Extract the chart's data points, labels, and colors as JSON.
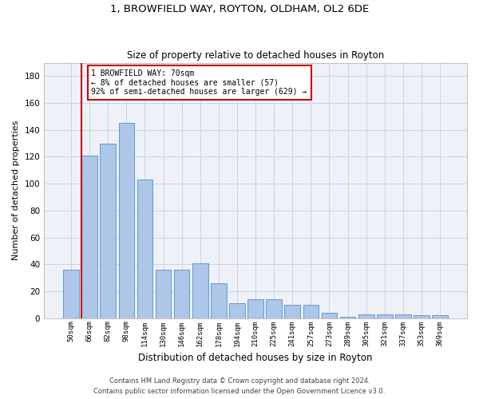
{
  "title1": "1, BROWFIELD WAY, ROYTON, OLDHAM, OL2 6DE",
  "title2": "Size of property relative to detached houses in Royton",
  "xlabel": "Distribution of detached houses by size in Royton",
  "ylabel": "Number of detached properties",
  "categories": [
    "50sqm",
    "66sqm",
    "82sqm",
    "98sqm",
    "114sqm",
    "130sqm",
    "146sqm",
    "162sqm",
    "178sqm",
    "194sqm",
    "210sqm",
    "225sqm",
    "241sqm",
    "257sqm",
    "273sqm",
    "289sqm",
    "305sqm",
    "321sqm",
    "337sqm",
    "353sqm",
    "369sqm"
  ],
  "values": [
    36,
    121,
    130,
    145,
    103,
    36,
    36,
    41,
    26,
    11,
    14,
    14,
    10,
    10,
    4,
    1,
    3,
    3,
    3,
    2,
    2
  ],
  "bar_color": "#aec6e8",
  "bar_edge_color": "#5b9bd5",
  "grid_color": "#c8d4e8",
  "background_color": "#eef2f8",
  "property_line_color": "#cc0000",
  "annotation_text": "1 BROWFIELD WAY: 70sqm\n← 8% of detached houses are smaller (57)\n92% of semi-detached houses are larger (629) →",
  "annotation_box_color": "#ffffff",
  "annotation_box_edge": "#cc0000",
  "ylim": [
    0,
    190
  ],
  "yticks": [
    0,
    20,
    40,
    60,
    80,
    100,
    120,
    140,
    160,
    180
  ],
  "footer1": "Contains HM Land Registry data © Crown copyright and database right 2024.",
  "footer2": "Contains public sector information licensed under the Open Government Licence v3.0."
}
